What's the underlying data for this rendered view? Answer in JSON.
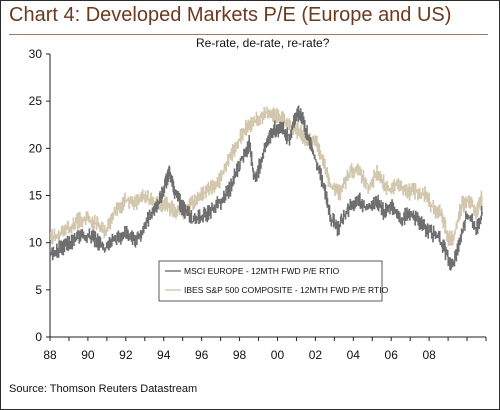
{
  "header": {
    "title": "Chart 4: Developed Markets P/E (Europe and US)",
    "subtitle": "Re-rate, de-rate, re-rate?"
  },
  "footer": {
    "source": "Source: Thomson Reuters Datastream"
  },
  "colors": {
    "title": "#6b3a1f",
    "msci": "#6e6e6e",
    "ibes": "#d2c6ad",
    "axis": "#222222"
  },
  "chart_data": {
    "type": "line",
    "x_tick_labels": [
      "88",
      "90",
      "92",
      "94",
      "96",
      "98",
      "00",
      "02",
      "04",
      "06",
      "08"
    ],
    "y_ticks": [
      0,
      5,
      10,
      15,
      20,
      25,
      30
    ],
    "xlim": [
      1988.0,
      2011.0
    ],
    "ylim": [
      0,
      30
    ],
    "grid": false,
    "legend_position": "bottom-center",
    "series": [
      {
        "name": "MSCI EUROPE - 12MTH FWD P/E RTIO",
        "color": "#6e6e6e",
        "x": [
          1988.0,
          1988.5,
          1989.0,
          1989.5,
          1990.0,
          1990.5,
          1990.9,
          1991.5,
          1992.0,
          1992.5,
          1992.8,
          1993.3,
          1993.8,
          1994.1,
          1994.3,
          1994.6,
          1995.0,
          1995.5,
          1996.0,
          1996.5,
          1997.0,
          1997.5,
          1998.0,
          1998.5,
          1998.8,
          1999.3,
          1999.8,
          2000.2,
          2000.6,
          2001.0,
          2001.3,
          2001.7,
          2002.0,
          2002.5,
          2002.8,
          2003.2,
          2003.7,
          2004.2,
          2004.7,
          2005.2,
          2005.6,
          2006.0,
          2006.5,
          2007.0,
          2007.5,
          2008.0,
          2008.5,
          2008.9,
          2009.2,
          2009.6,
          2010.0,
          2010.5,
          2010.8
        ],
        "y": [
          8.8,
          9.4,
          9.9,
          10.6,
          10.8,
          10.1,
          9.3,
          10.6,
          10.9,
          10.2,
          11.0,
          12.9,
          14.6,
          16.5,
          17.3,
          15.3,
          13.6,
          12.5,
          12.7,
          13.4,
          14.4,
          15.8,
          18.5,
          20.5,
          16.5,
          20.0,
          22.0,
          22.2,
          21.0,
          23.8,
          23.2,
          20.6,
          18.8,
          15.5,
          12.6,
          11.5,
          13.6,
          14.6,
          13.6,
          14.4,
          13.3,
          14.1,
          12.3,
          13.3,
          12.1,
          11.2,
          10.5,
          8.9,
          7.5,
          10.0,
          13.0,
          11.4,
          13.3
        ]
      },
      {
        "name": "IBES S&P 500 COMPOSITE - 12MTH FWD P/E RTIO",
        "color": "#d2c6ad",
        "x": [
          1988.0,
          1988.5,
          1989.0,
          1989.5,
          1990.0,
          1990.5,
          1990.9,
          1991.5,
          1992.0,
          1992.5,
          1993.0,
          1993.5,
          1994.0,
          1994.5,
          1995.0,
          1995.5,
          1996.0,
          1996.5,
          1997.0,
          1997.5,
          1998.0,
          1998.5,
          1999.0,
          1999.5,
          2000.0,
          2000.5,
          2001.0,
          2001.5,
          2002.0,
          2002.5,
          2002.8,
          2003.3,
          2003.8,
          2004.3,
          2004.8,
          2005.3,
          2005.8,
          2006.3,
          2006.8,
          2007.3,
          2007.8,
          2008.2,
          2008.6,
          2009.0,
          2009.3,
          2009.7,
          2010.1,
          2010.5,
          2010.8
        ],
        "y": [
          10.4,
          10.9,
          11.6,
          12.3,
          12.5,
          11.9,
          11.0,
          13.4,
          14.6,
          14.1,
          15.0,
          14.3,
          14.1,
          13.5,
          13.3,
          14.1,
          15.0,
          15.8,
          16.8,
          19.1,
          21.2,
          22.6,
          23.2,
          24.0,
          23.4,
          22.6,
          22.0,
          21.0,
          20.8,
          17.9,
          16.0,
          15.3,
          17.6,
          17.6,
          16.0,
          17.5,
          15.5,
          16.3,
          15.4,
          15.5,
          15.0,
          13.7,
          13.1,
          10.6,
          10.6,
          14.0,
          14.6,
          13.2,
          15.1
        ]
      }
    ]
  }
}
